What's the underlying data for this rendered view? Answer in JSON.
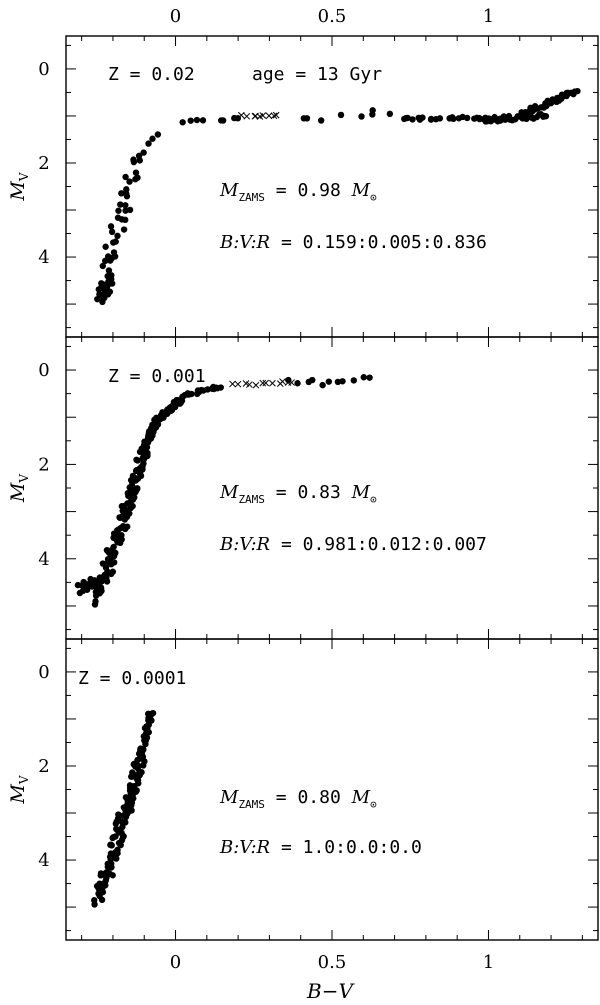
{
  "chart_data": [
    {
      "type": "scatter",
      "panel_label": "Z = 0.02",
      "age_label": "age = 13 Gyr",
      "mass_text": {
        "sym": "M",
        "sub": "ZAMS",
        "rest": " = 0.98 ",
        "unit_sym": "M",
        "unit_sub": "⊙"
      },
      "ratio_text": {
        "sym": "B:V:R",
        "rest": " = 0.159:0.005:0.836"
      },
      "xlabel": "B−V",
      "ylabel": "M",
      "ylabel_sub": "V",
      "xlim": [
        -0.35,
        1.35
      ],
      "ylim": [
        5.7,
        -0.7
      ],
      "x_ticks": [
        "0",
        "0.5",
        "1"
      ],
      "x_tick_values": [
        0,
        0.5,
        1
      ],
      "y_ticks": [
        "0",
        "2",
        "4"
      ],
      "y_tick_values": [
        0,
        2,
        4
      ],
      "segments_dots": [
        {
          "x1": -0.24,
          "y1": 4.85,
          "x2": -0.21,
          "y2": 4.4,
          "n": 30,
          "jx": 0.02,
          "jy": 0.12
        },
        {
          "x1": -0.22,
          "y1": 4.3,
          "x2": -0.17,
          "y2": 3.0,
          "n": 18,
          "jx": 0.025,
          "jy": 0.15
        },
        {
          "x1": -0.17,
          "y1": 3.0,
          "x2": -0.12,
          "y2": 1.9,
          "n": 16,
          "jx": 0.02,
          "jy": 0.12
        },
        {
          "x1": -0.12,
          "y1": 1.85,
          "x2": -0.06,
          "y2": 1.4,
          "n": 5,
          "jx": 0.01,
          "jy": 0.05
        },
        {
          "x1": 0.03,
          "y1": 1.12,
          "x2": 0.2,
          "y2": 1.05,
          "n": 8,
          "jx": 0.02,
          "jy": 0.04
        },
        {
          "x1": 0.48,
          "y1": 1.05,
          "x2": 0.7,
          "y2": 1.0,
          "n": 5,
          "jx": 0.02,
          "jy": 0.06
        },
        {
          "x1": 0.72,
          "y1": 1.05,
          "x2": 1.0,
          "y2": 1.05,
          "n": 22,
          "jx": 0.02,
          "jy": 0.03
        },
        {
          "x1": 0.98,
          "y1": 1.08,
          "x2": 1.18,
          "y2": 1.0,
          "n": 40,
          "jx": 0.02,
          "jy": 0.05
        },
        {
          "x1": 1.1,
          "y1": 0.98,
          "x2": 1.28,
          "y2": 0.48,
          "n": 45,
          "jx": 0.012,
          "jy": 0.04
        }
      ],
      "dots": [
        [
          0.63,
          0.88
        ],
        [
          0.41,
          1.05
        ],
        [
          0.42,
          1.05
        ]
      ],
      "segments_crosses": [
        {
          "x1": 0.22,
          "y1": 1.0,
          "x2": 0.33,
          "y2": 1.0,
          "n": 9,
          "jx": 0.01,
          "jy": 0.02
        }
      ]
    },
    {
      "type": "scatter",
      "panel_label": "Z = 0.001",
      "mass_text": {
        "sym": "M",
        "sub": "ZAMS",
        "rest": " = 0.83 ",
        "unit_sym": "M",
        "unit_sub": "⊙"
      },
      "ratio_text": {
        "sym": "B:V:R",
        "rest": " = 0.981:0.012:0.007"
      },
      "xlabel": "B−V",
      "ylabel": "M",
      "ylabel_sub": "V",
      "xlim": [
        -0.35,
        1.35
      ],
      "ylim": [
        5.7,
        -0.7
      ],
      "x_ticks": [
        "0",
        "0.5",
        "1"
      ],
      "x_tick_values": [
        0,
        0.5,
        1
      ],
      "y_ticks": [
        "0",
        "2",
        "4"
      ],
      "y_tick_values": [
        0,
        2,
        4
      ],
      "segments_dots": [
        {
          "x1": -0.31,
          "y1": 4.65,
          "x2": -0.22,
          "y2": 4.35,
          "n": 25,
          "jx": 0.015,
          "jy": 0.1
        },
        {
          "x1": -0.25,
          "y1": 4.9,
          "x2": -0.24,
          "y2": 4.45,
          "n": 15,
          "jx": 0.01,
          "jy": 0.1
        },
        {
          "x1": -0.22,
          "y1": 4.3,
          "x2": -0.17,
          "y2": 3.2,
          "n": 40,
          "jx": 0.02,
          "jy": 0.12
        },
        {
          "x1": -0.17,
          "y1": 3.2,
          "x2": -0.1,
          "y2": 1.7,
          "n": 70,
          "jx": 0.015,
          "jy": 0.08
        },
        {
          "x1": -0.1,
          "y1": 1.7,
          "x2": -0.06,
          "y2": 1.1,
          "n": 40,
          "jx": 0.01,
          "jy": 0.05
        },
        {
          "x1": -0.06,
          "y1": 1.1,
          "x2": 0.02,
          "y2": 0.6,
          "n": 40,
          "jx": 0.01,
          "jy": 0.04
        },
        {
          "x1": 0.02,
          "y1": 0.55,
          "x2": 0.15,
          "y2": 0.35,
          "n": 18,
          "jx": 0.01,
          "jy": 0.03
        },
        {
          "x1": 0.38,
          "y1": 0.25,
          "x2": 0.62,
          "y2": 0.18,
          "n": 9,
          "jx": 0.02,
          "jy": 0.04
        }
      ],
      "dots": [
        [
          0.47,
          0.32
        ],
        [
          0.39,
          0.28
        ]
      ],
      "segments_crosses": [
        {
          "x1": 0.18,
          "y1": 0.32,
          "x2": 0.38,
          "y2": 0.25,
          "n": 12,
          "jx": 0.01,
          "jy": 0.03
        }
      ]
    },
    {
      "type": "scatter",
      "panel_label": "Z = 0.0001",
      "mass_text": {
        "sym": "M",
        "sub": "ZAMS",
        "rest": " = 0.80 ",
        "unit_sym": "M",
        "unit_sub": "⊙"
      },
      "ratio_text": {
        "sym": "B:V:R",
        "rest": " = 1.0:0.0:0.0"
      },
      "xlabel": "B−V",
      "ylabel": "M",
      "ylabel_sub": "V",
      "xlim": [
        -0.35,
        1.35
      ],
      "ylim": [
        5.7,
        -0.7
      ],
      "x_ticks": [
        "0",
        "0.5",
        "1"
      ],
      "x_tick_values": [
        0,
        0.5,
        1
      ],
      "y_ticks": [
        "0",
        "2",
        "4"
      ],
      "y_tick_values": [
        0,
        2,
        4
      ],
      "segments_dots": [
        {
          "x1": -0.25,
          "y1": 4.85,
          "x2": -0.22,
          "y2": 4.3,
          "n": 20,
          "jx": 0.015,
          "jy": 0.1
        },
        {
          "x1": -0.22,
          "y1": 4.3,
          "x2": -0.16,
          "y2": 3.0,
          "n": 45,
          "jx": 0.02,
          "jy": 0.12
        },
        {
          "x1": -0.16,
          "y1": 3.0,
          "x2": -0.11,
          "y2": 1.8,
          "n": 55,
          "jx": 0.015,
          "jy": 0.09
        },
        {
          "x1": -0.11,
          "y1": 1.8,
          "x2": -0.08,
          "y2": 0.85,
          "n": 28,
          "jx": 0.01,
          "jy": 0.05
        }
      ],
      "dots": [],
      "segments_crosses": []
    }
  ],
  "axes_layout": {
    "top_x_ticks": [
      "0",
      "0.5",
      "1"
    ]
  }
}
